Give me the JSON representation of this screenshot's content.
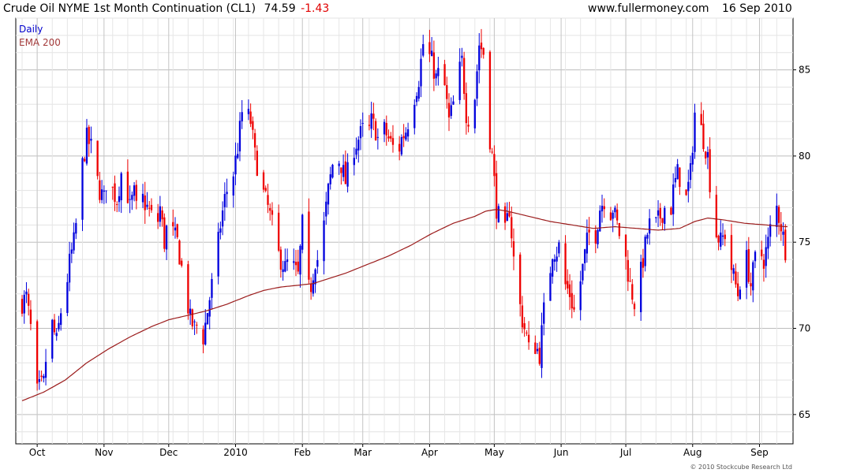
{
  "header": {
    "title": "Crude Oil NYME 1st Month Continuation (CL1)",
    "last": "74.59",
    "change": "-1.43",
    "site": "www.fullermoney.com",
    "date": "16 Sep 2010"
  },
  "legend": {
    "series1": "Daily",
    "series2": "EMA 200"
  },
  "copyright": "© 2010 Stockcube Research Ltd",
  "colors": {
    "up": "#0000dd",
    "down": "#ee0000",
    "ema": "#9b1b1b",
    "grid": "#d6d6d6",
    "header_red": "#e00000"
  },
  "chart_data": {
    "type": "candlestick",
    "ylim": [
      63.3,
      88.0
    ],
    "yticks": [
      65,
      70,
      75,
      80,
      85
    ],
    "xticks": [
      {
        "label": "Oct",
        "day": 7
      },
      {
        "label": "Nov",
        "day": 38
      },
      {
        "label": "Dec",
        "day": 68
      },
      {
        "label": "2010",
        "day": 99
      },
      {
        "label": "Feb",
        "day": 130
      },
      {
        "label": "Mar",
        "day": 158
      },
      {
        "label": "Apr",
        "day": 189
      },
      {
        "label": "May",
        "day": 219
      },
      {
        "label": "Jun",
        "day": 250
      },
      {
        "label": "Jul",
        "day": 280
      },
      {
        "label": "Aug",
        "day": 311
      },
      {
        "label": "Sep",
        "day": 342
      }
    ],
    "price_path": [
      [
        0,
        71.5
      ],
      [
        2,
        71.8
      ],
      [
        4,
        70.0
      ],
      [
        6,
        66.0
      ],
      [
        8,
        66.5
      ],
      [
        10,
        66.8
      ],
      [
        12,
        69.5
      ],
      [
        14,
        70.2
      ],
      [
        16,
        69.2
      ],
      [
        18,
        71.0
      ],
      [
        20,
        72.0
      ],
      [
        22,
        73.8
      ],
      [
        24,
        75.0
      ],
      [
        26,
        77.0
      ],
      [
        28,
        79.5
      ],
      [
        30,
        81.0
      ],
      [
        32,
        80.5
      ],
      [
        34,
        79.0
      ],
      [
        36,
        78.0
      ],
      [
        38,
        77.5
      ],
      [
        40,
        79.5
      ],
      [
        42,
        78.0
      ],
      [
        44,
        77.5
      ],
      [
        46,
        79.0
      ],
      [
        48,
        78.5
      ],
      [
        50,
        77.0
      ],
      [
        52,
        77.8
      ],
      [
        54,
        76.0
      ],
      [
        56,
        77.5
      ],
      [
        58,
        77.0
      ],
      [
        60,
        76.5
      ],
      [
        62,
        75.5
      ],
      [
        64,
        77.0
      ],
      [
        66,
        75.0
      ],
      [
        68,
        76.5
      ],
      [
        70,
        75.5
      ],
      [
        72,
        75.0
      ],
      [
        74,
        73.5
      ],
      [
        76,
        72.0
      ],
      [
        78,
        70.5
      ],
      [
        80,
        70.0
      ],
      [
        82,
        70.3
      ],
      [
        84,
        69.5
      ],
      [
        86,
        71.0
      ],
      [
        88,
        72.5
      ],
      [
        90,
        74.0
      ],
      [
        92,
        76.0
      ],
      [
        94,
        77.5
      ],
      [
        96,
        78.5
      ],
      [
        98,
        79.0
      ],
      [
        100,
        80.5
      ],
      [
        102,
        82.5
      ],
      [
        104,
        82.5
      ],
      [
        106,
        82.0
      ],
      [
        108,
        80.0
      ],
      [
        110,
        79.0
      ],
      [
        112,
        77.8
      ],
      [
        114,
        77.0
      ],
      [
        116,
        76.0
      ],
      [
        118,
        74.5
      ],
      [
        120,
        74.0
      ],
      [
        122,
        73.5
      ],
      [
        124,
        74.0
      ],
      [
        126,
        73.5
      ],
      [
        128,
        73.0
      ],
      [
        130,
        76.0
      ],
      [
        132,
        72.0
      ],
      [
        134,
        72.5
      ],
      [
        136,
        74.0
      ],
      [
        138,
        74.0
      ],
      [
        140,
        76.0
      ],
      [
        142,
        78.0
      ],
      [
        144,
        79.5
      ],
      [
        146,
        80.0
      ],
      [
        148,
        79.5
      ],
      [
        150,
        78.5
      ],
      [
        152,
        79.5
      ],
      [
        154,
        80.5
      ],
      [
        156,
        81.0
      ],
      [
        158,
        81.5
      ],
      [
        160,
        81.0
      ],
      [
        162,
        82.0
      ],
      [
        164,
        81.5
      ],
      [
        166,
        80.5
      ],
      [
        168,
        81.5
      ],
      [
        170,
        81.0
      ],
      [
        172,
        80.5
      ],
      [
        174,
        80.0
      ],
      [
        176,
        81.0
      ],
      [
        178,
        81.5
      ],
      [
        180,
        82.5
      ],
      [
        182,
        83.5
      ],
      [
        184,
        84.5
      ],
      [
        186,
        86.5
      ],
      [
        188,
        86.0
      ],
      [
        190,
        85.5
      ],
      [
        192,
        84.5
      ],
      [
        194,
        85.0
      ],
      [
        196,
        84.0
      ],
      [
        198,
        82.0
      ],
      [
        200,
        83.0
      ],
      [
        202,
        84.5
      ],
      [
        204,
        85.5
      ],
      [
        206,
        82.5
      ],
      [
        208,
        82.0
      ],
      [
        210,
        83.5
      ],
      [
        212,
        86.5
      ],
      [
        214,
        86.0
      ],
      [
        216,
        82.0
      ],
      [
        218,
        80.0
      ],
      [
        220,
        77.0
      ],
      [
        222,
        76.0
      ],
      [
        224,
        75.5
      ],
      [
        226,
        77.0
      ],
      [
        228,
        74.0
      ],
      [
        230,
        72.0
      ],
      [
        232,
        70.5
      ],
      [
        234,
        69.5
      ],
      [
        236,
        68.0
      ],
      [
        238,
        69.0
      ],
      [
        240,
        68.5
      ],
      [
        242,
        71.0
      ],
      [
        244,
        72.5
      ],
      [
        246,
        74.5
      ],
      [
        248,
        74.5
      ],
      [
        250,
        75.0
      ],
      [
        252,
        72.5
      ],
      [
        254,
        72.0
      ],
      [
        256,
        71.0
      ],
      [
        258,
        72.0
      ],
      [
        260,
        73.5
      ],
      [
        262,
        75.0
      ],
      [
        264,
        76.0
      ],
      [
        266,
        75.5
      ],
      [
        268,
        77.0
      ],
      [
        270,
        77.5
      ],
      [
        272,
        76.5
      ],
      [
        274,
        77.0
      ],
      [
        276,
        76.0
      ],
      [
        278,
        75.0
      ],
      [
        280,
        74.0
      ],
      [
        282,
        72.5
      ],
      [
        284,
        71.5
      ],
      [
        286,
        72.5
      ],
      [
        288,
        74.0
      ],
      [
        290,
        75.5
      ],
      [
        292,
        76.5
      ],
      [
        294,
        76.0
      ],
      [
        296,
        76.5
      ],
      [
        298,
        77.0
      ],
      [
        300,
        76.0
      ],
      [
        302,
        78.0
      ],
      [
        304,
        79.0
      ],
      [
        306,
        78.5
      ],
      [
        308,
        77.5
      ],
      [
        310,
        79.0
      ],
      [
        312,
        82.5
      ],
      [
        314,
        82.0
      ],
      [
        316,
        81.0
      ],
      [
        318,
        80.0
      ],
      [
        320,
        77.0
      ],
      [
        322,
        75.5
      ],
      [
        324,
        75.0
      ],
      [
        326,
        75.5
      ],
      [
        328,
        74.0
      ],
      [
        330,
        73.0
      ],
      [
        332,
        72.0
      ],
      [
        334,
        73.5
      ],
      [
        336,
        74.0
      ],
      [
        338,
        72.5
      ],
      [
        340,
        74.0
      ],
      [
        342,
        74.5
      ],
      [
        344,
        74.0
      ],
      [
        346,
        75.0
      ],
      [
        348,
        76.5
      ],
      [
        350,
        77.0
      ],
      [
        352,
        76.0
      ],
      [
        354,
        74.6
      ]
    ],
    "ema_path": [
      [
        0,
        65.8
      ],
      [
        10,
        66.3
      ],
      [
        20,
        67.0
      ],
      [
        30,
        68.0
      ],
      [
        40,
        68.8
      ],
      [
        50,
        69.5
      ],
      [
        60,
        70.1
      ],
      [
        68,
        70.5
      ],
      [
        75,
        70.7
      ],
      [
        85,
        71.0
      ],
      [
        95,
        71.4
      ],
      [
        105,
        71.9
      ],
      [
        112,
        72.2
      ],
      [
        120,
        72.4
      ],
      [
        128,
        72.5
      ],
      [
        135,
        72.6
      ],
      [
        140,
        72.8
      ],
      [
        150,
        73.2
      ],
      [
        160,
        73.7
      ],
      [
        170,
        74.2
      ],
      [
        180,
        74.8
      ],
      [
        190,
        75.5
      ],
      [
        200,
        76.1
      ],
      [
        210,
        76.5
      ],
      [
        215,
        76.8
      ],
      [
        220,
        76.9
      ],
      [
        225,
        76.8
      ],
      [
        235,
        76.5
      ],
      [
        245,
        76.2
      ],
      [
        255,
        76.0
      ],
      [
        265,
        75.8
      ],
      [
        275,
        75.9
      ],
      [
        285,
        75.8
      ],
      [
        295,
        75.7
      ],
      [
        305,
        75.8
      ],
      [
        312,
        76.2
      ],
      [
        318,
        76.4
      ],
      [
        325,
        76.3
      ],
      [
        335,
        76.1
      ],
      [
        345,
        76.0
      ],
      [
        354,
        75.9
      ]
    ],
    "n_days": 356
  }
}
